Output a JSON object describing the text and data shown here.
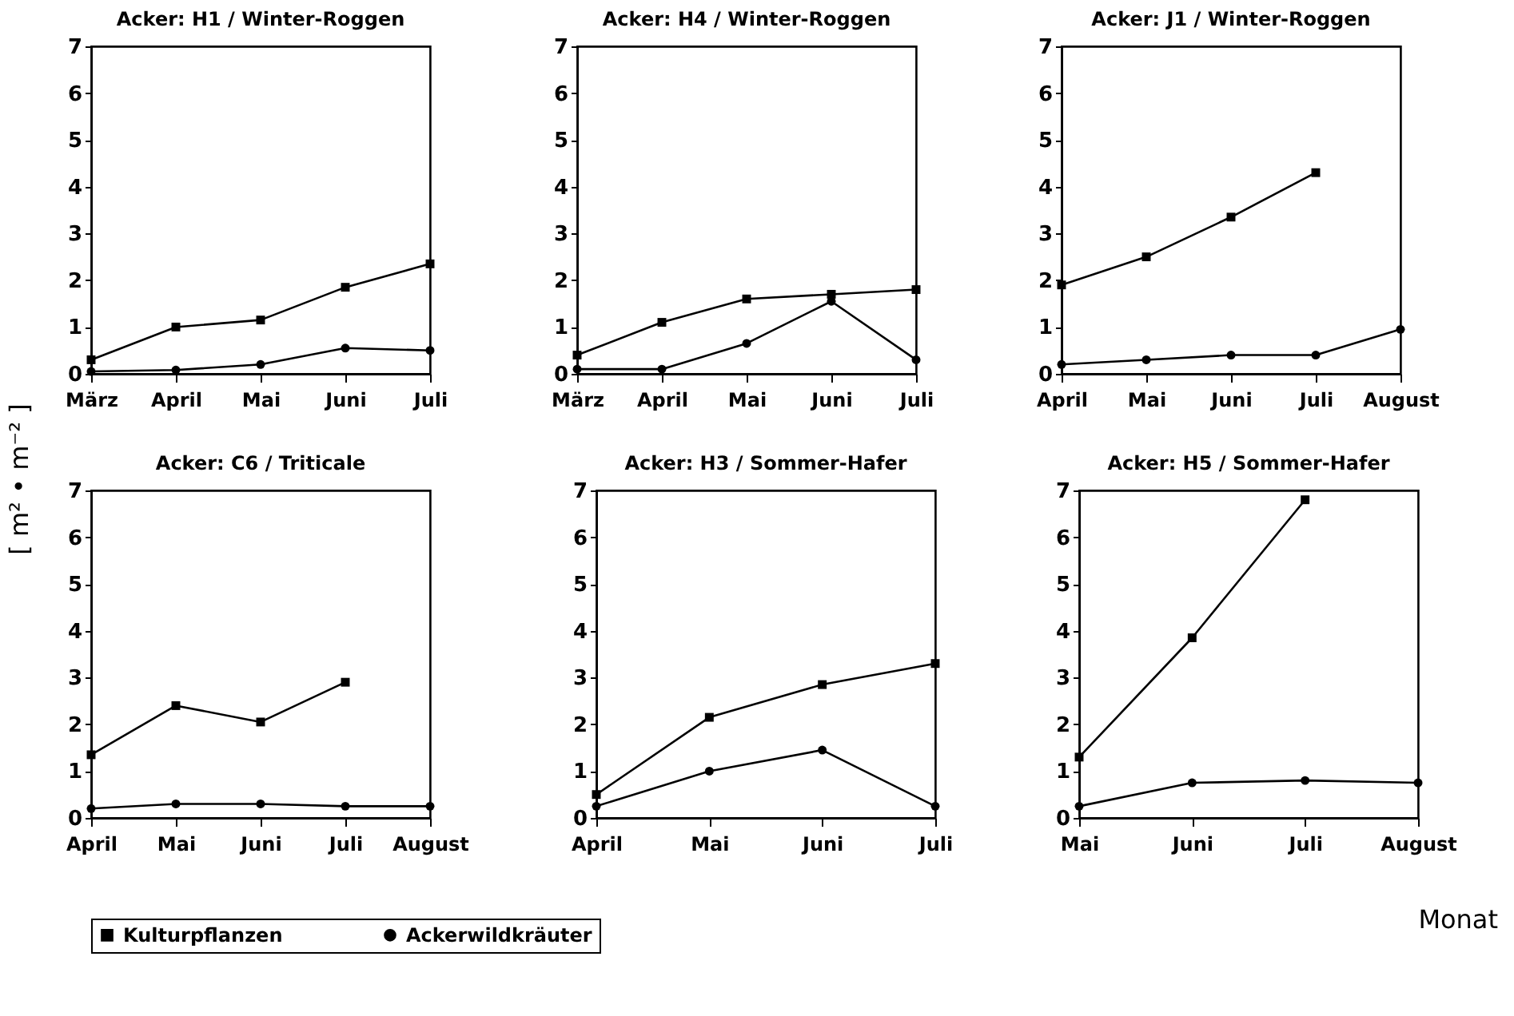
{
  "chart_data": [
    {
      "type": "line",
      "title": "Acker: H1 / Winter-Roggen",
      "ylabel": "[ m² • m⁻² ]",
      "categories": [
        "März",
        "April",
        "Mai",
        "Juni",
        "Juli"
      ],
      "ylim": [
        0,
        7
      ],
      "yticks": [
        0,
        1,
        2,
        3,
        4,
        5,
        6,
        7
      ],
      "legend": "bottom",
      "series": [
        {
          "name": "Kulturpflanzen",
          "color": "#000000",
          "marker": "square",
          "values": [
            0.3,
            1.0,
            1.15,
            1.85,
            2.35
          ]
        },
        {
          "name": "Ackerwildkräuter",
          "color": "#000000",
          "marker": "circle",
          "values": [
            0.05,
            0.08,
            0.2,
            0.55,
            0.5
          ]
        }
      ]
    },
    {
      "type": "line",
      "title": "Acker: H4 / Winter-Roggen",
      "categories": [
        "März",
        "April",
        "Mai",
        "Juni",
        "Juli"
      ],
      "ylim": [
        0,
        7
      ],
      "yticks": [
        0,
        1,
        2,
        3,
        4,
        5,
        6,
        7
      ],
      "legend": "bottom",
      "series": [
        {
          "name": "Kulturpflanzen",
          "color": "#000000",
          "marker": "square",
          "values": [
            0.4,
            1.1,
            1.6,
            1.7,
            1.8
          ]
        },
        {
          "name": "Ackerwildkräuter",
          "color": "#000000",
          "marker": "circle",
          "values": [
            0.1,
            0.1,
            0.65,
            1.55,
            0.3
          ]
        }
      ]
    },
    {
      "type": "line",
      "title": "Acker: J1 / Winter-Roggen",
      "categories": [
        "April",
        "Mai",
        "Juni",
        "Juli",
        "August"
      ],
      "ylim": [
        0,
        7
      ],
      "yticks": [
        0,
        1,
        2,
        3,
        4,
        5,
        6,
        7
      ],
      "legend": "bottom",
      "series": [
        {
          "name": "Kulturpflanzen",
          "color": "#000000",
          "marker": "square",
          "values": [
            1.9,
            2.5,
            3.35,
            4.3,
            null
          ]
        },
        {
          "name": "Ackerwildkräuter",
          "color": "#000000",
          "marker": "circle",
          "values": [
            0.2,
            0.3,
            0.4,
            0.4,
            0.95
          ]
        }
      ]
    },
    {
      "type": "line",
      "title": "Acker: C6 / Triticale",
      "categories": [
        "April",
        "Mai",
        "Juni",
        "Juli",
        "August"
      ],
      "ylim": [
        0,
        7
      ],
      "yticks": [
        0,
        1,
        2,
        3,
        4,
        5,
        6,
        7
      ],
      "legend": "bottom",
      "series": [
        {
          "name": "Kulturpflanzen",
          "color": "#000000",
          "marker": "square",
          "values": [
            1.35,
            2.4,
            2.05,
            2.9,
            null
          ]
        },
        {
          "name": "Ackerwildkräuter",
          "color": "#000000",
          "marker": "circle",
          "values": [
            0.2,
            0.3,
            0.3,
            0.25,
            0.25
          ]
        }
      ]
    },
    {
      "type": "line",
      "title": "Acker: H3 / Sommer-Hafer",
      "categories": [
        "April",
        "Mai",
        "Juni",
        "Juli"
      ],
      "ylim": [
        0,
        7
      ],
      "yticks": [
        0,
        1,
        2,
        3,
        4,
        5,
        6,
        7
      ],
      "legend": "bottom",
      "series": [
        {
          "name": "Kulturpflanzen",
          "color": "#000000",
          "marker": "square",
          "values": [
            0.5,
            2.15,
            2.85,
            3.3
          ]
        },
        {
          "name": "Ackerwildkräuter",
          "color": "#000000",
          "marker": "circle",
          "values": [
            0.25,
            1.0,
            1.45,
            0.25
          ]
        }
      ]
    },
    {
      "type": "line",
      "title": "Acker: H5 / Sommer-Hafer",
      "xlabel": "Monat",
      "categories": [
        "Mai",
        "Juni",
        "Juli",
        "August"
      ],
      "ylim": [
        0,
        7
      ],
      "yticks": [
        0,
        1,
        2,
        3,
        4,
        5,
        6,
        7
      ],
      "legend": "bottom",
      "series": [
        {
          "name": "Kulturpflanzen",
          "color": "#000000",
          "marker": "square",
          "values": [
            1.3,
            3.85,
            6.8,
            null
          ]
        },
        {
          "name": "Ackerwildkräuter",
          "color": "#000000",
          "marker": "circle",
          "values": [
            0.25,
            0.75,
            0.8,
            0.75
          ]
        }
      ]
    }
  ]
}
